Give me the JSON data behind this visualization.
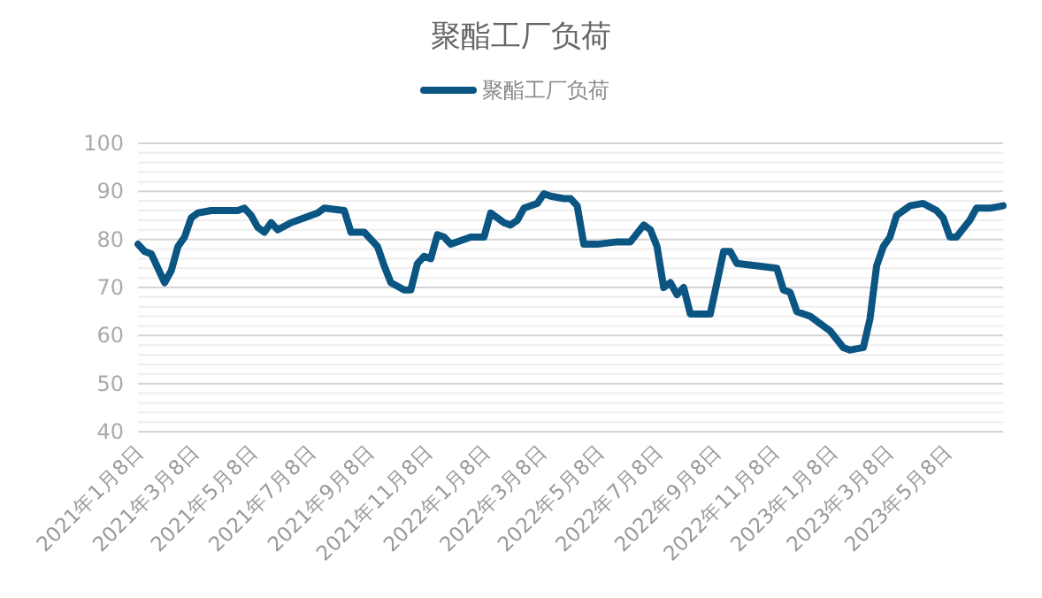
{
  "chart_data": {
    "type": "line",
    "title": "聚酯工厂负荷",
    "legend": "top",
    "x": [
      "2021-01-08",
      "2021-01-15",
      "2021-01-22",
      "2021-01-29",
      "2021-02-05",
      "2021-02-12",
      "2021-02-19",
      "2021-02-26",
      "2021-03-05",
      "2021-03-12",
      "2021-03-26",
      "2021-04-23",
      "2021-04-30",
      "2021-05-07",
      "2021-05-14",
      "2021-05-21",
      "2021-05-28",
      "2021-06-04",
      "2021-06-18",
      "2021-07-02",
      "2021-07-16",
      "2021-07-23",
      "2021-08-13",
      "2021-08-20",
      "2021-09-03",
      "2021-09-17",
      "2021-09-24",
      "2021-10-01",
      "2021-10-15",
      "2021-10-22",
      "2021-10-29",
      "2021-11-05",
      "2021-11-12",
      "2021-11-19",
      "2021-11-26",
      "2021-12-03",
      "2021-12-24",
      "2022-01-07",
      "2022-01-14",
      "2022-01-21",
      "2022-01-28",
      "2022-02-04",
      "2022-02-11",
      "2022-02-18",
      "2022-03-04",
      "2022-03-11",
      "2022-03-18",
      "2022-04-01",
      "2022-04-08",
      "2022-04-15",
      "2022-04-22",
      "2022-05-06",
      "2022-05-27",
      "2022-06-10",
      "2022-06-24",
      "2022-07-01",
      "2022-07-08",
      "2022-07-15",
      "2022-07-22",
      "2022-07-29",
      "2022-08-05",
      "2022-08-12",
      "2022-09-02",
      "2022-09-16",
      "2022-09-23",
      "2022-09-30",
      "2022-10-21",
      "2022-11-11",
      "2022-11-18",
      "2022-11-25",
      "2022-12-02",
      "2022-12-16",
      "2023-01-06",
      "2023-01-20",
      "2023-01-27",
      "2023-02-10",
      "2023-02-17",
      "2023-02-24",
      "2023-03-03",
      "2023-03-10",
      "2023-03-17",
      "2023-03-31",
      "2023-04-14",
      "2023-04-28",
      "2023-05-05",
      "2023-05-12",
      "2023-05-19",
      "2023-06-02",
      "2023-06-09",
      "2023-06-23",
      "2023-07-07"
    ],
    "series": [
      {
        "name": "聚酯工厂负荷",
        "color": "#0b5583",
        "values": [
          79,
          77.5,
          77,
          74,
          71,
          73.5,
          78.5,
          80.5,
          84.5,
          85.5,
          86,
          86,
          86.5,
          85,
          82.5,
          81.5,
          83.5,
          82,
          83.5,
          84.5,
          85.5,
          86.5,
          86,
          81.5,
          81.5,
          78.5,
          74.5,
          71,
          69.5,
          69.5,
          75,
          76.5,
          76,
          81,
          80.5,
          79,
          80.5,
          80.5,
          85.5,
          84.5,
          83.5,
          83,
          84,
          86.5,
          87.5,
          89.5,
          89,
          88.5,
          88.5,
          87,
          79,
          79,
          79.5,
          79.5,
          83,
          82,
          78.5,
          70,
          71,
          68.5,
          70,
          64.5,
          64.5,
          77.5,
          77.5,
          75,
          74.5,
          74,
          69.5,
          69,
          65,
          64,
          61,
          57.5,
          57,
          57.5,
          63.5,
          74.5,
          78.5,
          80.5,
          85,
          87,
          87.5,
          86,
          84.5,
          80.5,
          80.5,
          84,
          86.5,
          86.5,
          87
        ]
      }
    ],
    "xlim": [
      "2021-01-08",
      "2023-07-07"
    ],
    "xticks": [
      {
        "value": "2021-01-08",
        "label": "2021年1月8日"
      },
      {
        "value": "2021-03-08",
        "label": "2021年3月8日"
      },
      {
        "value": "2021-05-08",
        "label": "2021年5月8日"
      },
      {
        "value": "2021-07-08",
        "label": "2021年7月8日"
      },
      {
        "value": "2021-09-08",
        "label": "2021年9月8日"
      },
      {
        "value": "2021-11-08",
        "label": "2021年11月8日"
      },
      {
        "value": "2022-01-08",
        "label": "2022年1月8日"
      },
      {
        "value": "2022-03-08",
        "label": "2022年3月8日"
      },
      {
        "value": "2022-05-08",
        "label": "2022年5月8日"
      },
      {
        "value": "2022-07-08",
        "label": "2022年7月8日"
      },
      {
        "value": "2022-09-08",
        "label": "2022年9月8日"
      },
      {
        "value": "2022-11-08",
        "label": "2022年11月8日"
      },
      {
        "value": "2023-01-08",
        "label": "2023年1月8日"
      },
      {
        "value": "2023-03-08",
        "label": "2023年3月8日"
      },
      {
        "value": "2023-05-08",
        "label": "2023年5月8日"
      }
    ],
    "ylim": [
      40,
      100
    ],
    "yticks": [
      40,
      {
        "value": 42,
        "label": null
      },
      {
        "value": 44,
        "label": null
      },
      {
        "value": 46,
        "label": null
      },
      {
        "value": 48,
        "label": null
      },
      50,
      {
        "value": 52,
        "label": null
      },
      {
        "value": 54,
        "label": null
      },
      {
        "value": 56,
        "label": null
      },
      {
        "value": 58,
        "label": null
      },
      60,
      {
        "value": 62,
        "label": null
      },
      {
        "value": 64,
        "label": null
      },
      {
        "value": 66,
        "label": null
      },
      {
        "value": 68,
        "label": null
      },
      70,
      {
        "value": 72,
        "label": null
      },
      {
        "value": 74,
        "label": null
      },
      {
        "value": 76,
        "label": null
      },
      {
        "value": 78,
        "label": null
      },
      80,
      {
        "value": 82,
        "label": null
      },
      {
        "value": 84,
        "label": null
      },
      {
        "value": 86,
        "label": null
      },
      {
        "value": 88,
        "label": null
      },
      90,
      {
        "value": 92,
        "label": null
      },
      {
        "value": 94,
        "label": null
      },
      {
        "value": 96,
        "label": null
      },
      {
        "value": 98,
        "label": null
      },
      100
    ],
    "grid": "y",
    "marker": "none",
    "line_style": "solid"
  }
}
